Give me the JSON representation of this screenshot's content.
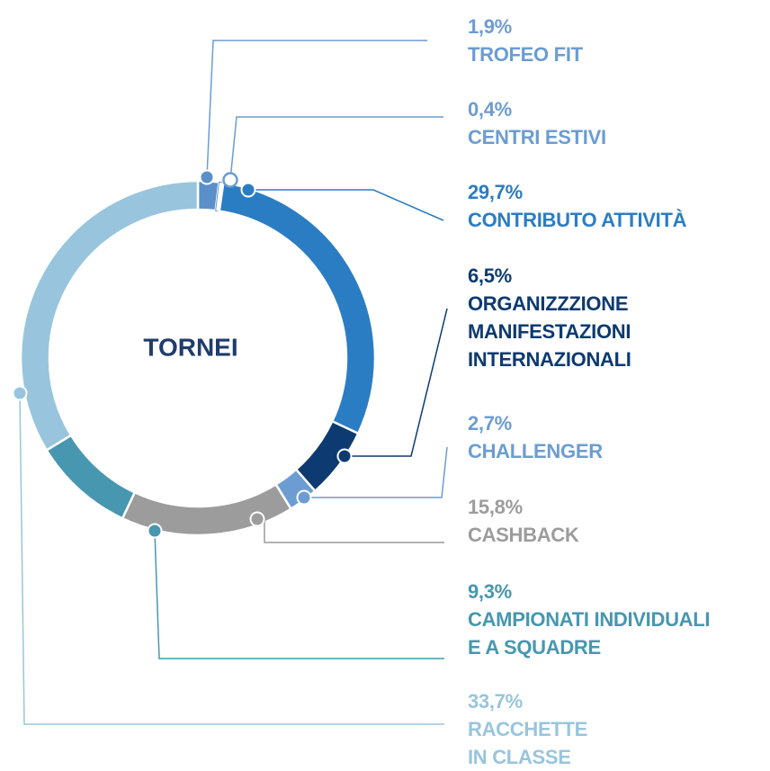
{
  "chart_data": {
    "type": "pie",
    "donut": true,
    "title": "TORNEI",
    "categories": [
      "TROFEO FIT",
      "CENTRI ESTIVI",
      "CONTRIBUTO ATTIVITÀ",
      "ORGANIZZZIONE\nMANIFESTAZIONI\nINTERNAZIONALI",
      "CHALLENGER",
      "CASHBACK",
      "CAMPIONATI INDIVIDUALI\nE A SQUADRE",
      "RACCHETTE\nIN CLASSE"
    ],
    "values": [
      1.9,
      0.4,
      29.7,
      6.5,
      2.7,
      15.8,
      9.3,
      33.7
    ],
    "value_labels": [
      "1,9%",
      "0,4%",
      "29,7%",
      "6,5%",
      "2,7%",
      "15,8%",
      "9,3%",
      "33,7%"
    ],
    "colors": [
      "#5b8fca",
      "#ffffff",
      "#2b7dc3",
      "#0d3a70",
      "#6c9cd2",
      "#9c9c9c",
      "#4797b0",
      "#98c5dd"
    ],
    "label_colors": [
      "#6c9cd2",
      "#6c9cd2",
      "#2b7dc3",
      "#0d3a70",
      "#6c9cd2",
      "#9c9c9c",
      "#4797b0",
      "#98c5dd"
    ]
  }
}
